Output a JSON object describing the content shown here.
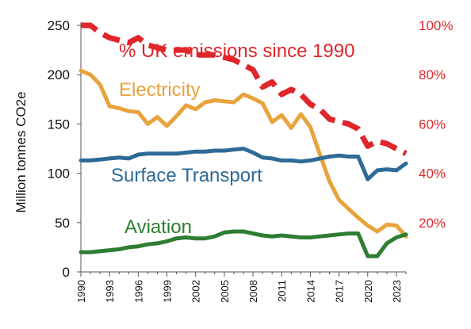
{
  "chart_data": {
    "type": "line",
    "title": "",
    "ylabel": "Million tonnes CO2e",
    "ylabel_right": "",
    "xlim": [
      1990,
      2024
    ],
    "ylim": [
      0,
      250
    ],
    "ylim_right": [
      0,
      100
    ],
    "x_ticks": [
      "1990",
      "1993",
      "1996",
      "1999",
      "2002",
      "2005",
      "2008",
      "2011",
      "2014",
      "2017",
      "2020",
      "2023"
    ],
    "y_ticks": [
      "0",
      "50",
      "100",
      "150",
      "200",
      "250"
    ],
    "y_right_ticks": [
      "20%",
      "40%",
      "60%",
      "80%",
      "100%"
    ],
    "grid": false,
    "legend": "inline labels",
    "years": [
      1990,
      1991,
      1992,
      1993,
      1994,
      1995,
      1996,
      1997,
      1998,
      1999,
      2000,
      2001,
      2002,
      2003,
      2004,
      2005,
      2006,
      2007,
      2008,
      2009,
      2010,
      2011,
      2012,
      2013,
      2014,
      2015,
      2016,
      2017,
      2018,
      2019,
      2020,
      2021,
      2022,
      2023,
      2024
    ],
    "series": [
      {
        "name": "Electricity",
        "axis": "left",
        "color": "#e8a33d",
        "values": [
          204,
          200,
          190,
          168,
          166,
          163,
          162,
          150,
          157,
          148,
          158,
          169,
          165,
          172,
          174,
          173,
          172,
          180,
          176,
          171,
          152,
          159,
          146,
          160,
          147,
          119,
          92,
          73,
          64,
          55,
          47,
          41,
          48,
          47,
          36
        ]
      },
      {
        "name": "Surface Transport",
        "axis": "left",
        "color": "#2e6a96",
        "values": [
          113,
          113,
          114,
          115,
          116,
          115,
          119,
          120,
          120,
          120,
          120,
          121,
          122,
          122,
          123,
          123,
          124,
          125,
          121,
          116,
          115,
          113,
          113,
          112,
          113,
          115,
          117,
          118,
          117,
          117,
          94,
          103,
          104,
          103,
          110
        ]
      },
      {
        "name": "Aviation",
        "axis": "left",
        "color": "#2e7d32",
        "values": [
          20,
          20,
          21,
          22,
          23,
          25,
          26,
          28,
          29,
          31,
          34,
          35,
          34,
          34,
          36,
          40,
          41,
          41,
          39,
          37,
          36,
          37,
          36,
          35,
          35,
          36,
          37,
          38,
          39,
          39,
          16,
          16,
          29,
          35,
          38
        ]
      },
      {
        "name": "% UK emissions since 1990",
        "axis": "right",
        "color": "#e0262a",
        "style": "dashed",
        "values": [
          100,
          100,
          97,
          95,
          94,
          93,
          95,
          92,
          91,
          90,
          90,
          90,
          88,
          88,
          88,
          87,
          86,
          84,
          82,
          75,
          77,
          72,
          74,
          72,
          68,
          66,
          62,
          61,
          60,
          58,
          51,
          53,
          52,
          50,
          48
        ]
      }
    ],
    "labels": {
      "electricity": "Electricity",
      "surface_transport": "Surface Transport",
      "aviation": "Aviation",
      "uk_emissions": "% UK emissions since 1990"
    }
  }
}
